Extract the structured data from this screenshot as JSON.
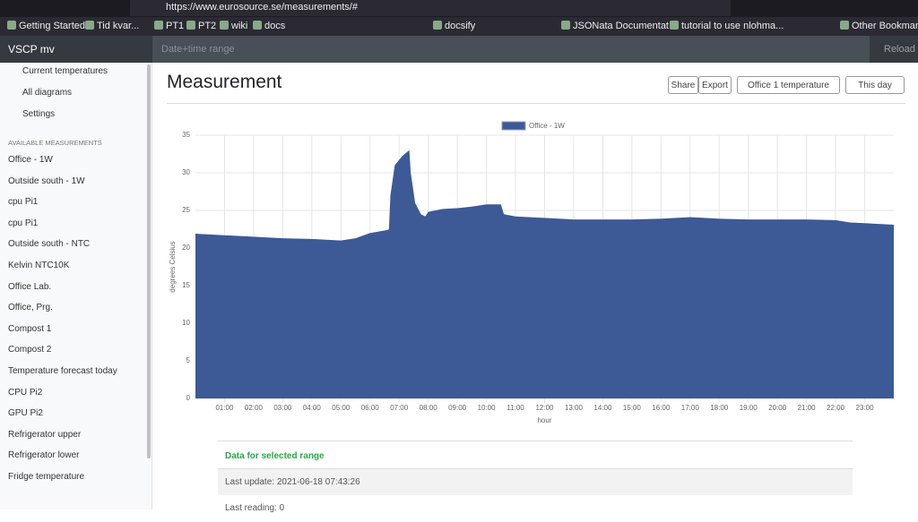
{
  "browser": {
    "url": "https://www.eurosource.se/measurements/#",
    "bookmarks": [
      "Getting Started",
      "Tid kvar...",
      "PT1",
      "PT2",
      "wiki",
      "docs",
      "docsify",
      "JSONata Documentat...",
      "tutorial to use nlohma...",
      "Other Bookmarks"
    ]
  },
  "navbar": {
    "brand": "VSCP mv",
    "range_placeholder": "Date+time range",
    "reload": "Reload"
  },
  "sidebar": {
    "menu": [
      "Current temperatures",
      "All diagrams",
      "Settings"
    ],
    "section": "AVAILABLE MEASUREMENTS",
    "measurements": [
      "Office - 1W",
      "Outside south - 1W",
      "cpu Pi1",
      "cpu Pi1",
      "Outside south - NTC",
      "Kelvin NTC10K",
      "Office Lab.",
      "Office, Prg.",
      "Compost 1",
      "Compost 2",
      "Temperature forecast today",
      "CPU Pi2",
      "GPU Pi2",
      "Refrigerator upper",
      "Refrigerator lower",
      "Fridge temperature"
    ]
  },
  "main": {
    "title": "Measurement",
    "buttons": [
      "Share",
      "Export",
      "Office 1 temperature",
      "This day"
    ],
    "table": {
      "heading": "Data for selected range",
      "last_update": "Last update: 2021-06-18 07:43:26",
      "last_reading": "Last reading: 0"
    }
  },
  "chart_data": {
    "type": "area",
    "x_label": "hour",
    "y_label": "degrees Celsius",
    "x": [
      0,
      0.5,
      1,
      2,
      3,
      4,
      5,
      5.5,
      6,
      6.6,
      6.65,
      6.7,
      6.85,
      7.1,
      7.35,
      7.4,
      7.55,
      7.75,
      7.9,
      8,
      8.5,
      9,
      9.5,
      10,
      10.5,
      10.6,
      11,
      12,
      13,
      14,
      15,
      16,
      17,
      18,
      19,
      20,
      21,
      22,
      22.5,
      23,
      24
    ],
    "series": [
      {
        "name": "Office - 1W",
        "color": "#3d5a96",
        "values": [
          21.9,
          21.8,
          21.7,
          21.5,
          21.3,
          21.2,
          21.0,
          21.3,
          22.0,
          22.4,
          22.5,
          27,
          31,
          32.2,
          33,
          30,
          26,
          24.5,
          24.2,
          24.8,
          25.2,
          25.3,
          25.5,
          25.8,
          25.8,
          24.5,
          24.2,
          24.0,
          23.8,
          23.8,
          23.8,
          23.9,
          24.1,
          23.9,
          23.8,
          23.8,
          23.8,
          23.7,
          23.4,
          23.3,
          23.1
        ]
      }
    ],
    "xlim": [
      0,
      24
    ],
    "xticks": [
      {
        "value": 1,
        "label": "01:00"
      },
      {
        "value": 2,
        "label": "02:00"
      },
      {
        "value": 3,
        "label": "03:00"
      },
      {
        "value": 4,
        "label": "04:00"
      },
      {
        "value": 5,
        "label": "05:00"
      },
      {
        "value": 6,
        "label": "06:00"
      },
      {
        "value": 7,
        "label": "07:00"
      },
      {
        "value": 8,
        "label": "08:00"
      },
      {
        "value": 9,
        "label": "09:00"
      },
      {
        "value": 10,
        "label": "10:00"
      },
      {
        "value": 11,
        "label": "11:00"
      },
      {
        "value": 12,
        "label": "12:00"
      },
      {
        "value": 13,
        "label": "13:00"
      },
      {
        "value": 14,
        "label": "14:00"
      },
      {
        "value": 15,
        "label": "15:00"
      },
      {
        "value": 16,
        "label": "16:00"
      },
      {
        "value": 17,
        "label": "17:00"
      },
      {
        "value": 18,
        "label": "18:00"
      },
      {
        "value": 19,
        "label": "19:00"
      },
      {
        "value": 20,
        "label": "20:00"
      },
      {
        "value": 21,
        "label": "21:00"
      },
      {
        "value": 22,
        "label": "22:00"
      },
      {
        "value": 23,
        "label": "23:00"
      }
    ],
    "ylim": [
      0,
      35
    ],
    "yticks": [
      0,
      5,
      10,
      15,
      20,
      25,
      30,
      35
    ],
    "grid": true,
    "legend": "top"
  }
}
